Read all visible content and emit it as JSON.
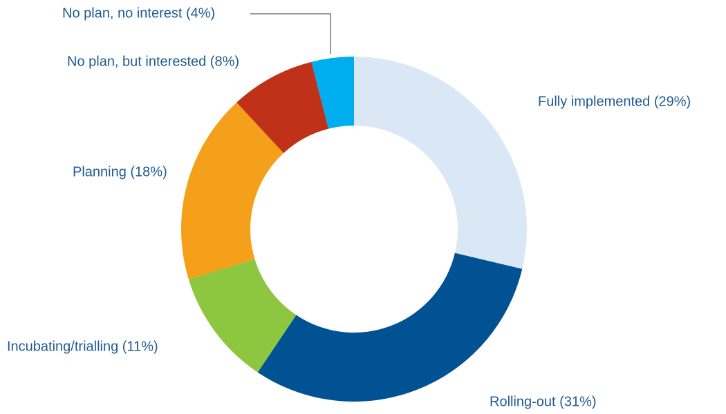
{
  "chart_data": {
    "type": "donut",
    "values": [
      29,
      31,
      11,
      18,
      8,
      4
    ],
    "value_labels": [
      "Fully implemented (29%)",
      "Rolling-out (31%)",
      "Incubating/trialling (11%)",
      "Planning (18%)",
      "No plan, but interested (8%)",
      "No plan, no interest (4%)"
    ],
    "colors": [
      "#dae8f6",
      "#005293",
      "#8dc63f",
      "#f5a01a",
      "#c0311a",
      "#00aeef"
    ]
  }
}
